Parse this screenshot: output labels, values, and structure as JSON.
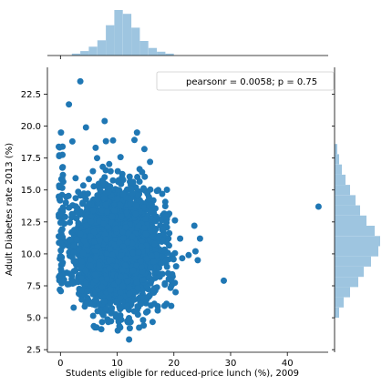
{
  "chart_data": {
    "type": "scatter",
    "subtype": "joint plot with marginal histograms",
    "xlabel": "Students eligible for reduced-price lunch (%), 2009",
    "ylabel": "Adult Diabetes rate 2013 (%)",
    "xlim": [
      -2.3,
      47.2
    ],
    "ylim": [
      2.3,
      24.6
    ],
    "x_ticks": [
      0,
      10,
      20,
      30,
      40
    ],
    "x_tick_labels": [
      "0",
      "10",
      "20",
      "30",
      "40"
    ],
    "y_ticks": [
      2.5,
      5.0,
      7.5,
      10.0,
      12.5,
      15.0,
      17.5,
      20.0,
      22.5
    ],
    "y_tick_labels": [
      "2.5",
      "5.0",
      "7.5",
      "10.0",
      "12.5",
      "15.0",
      "17.5",
      "20.0",
      "22.5"
    ],
    "grid": false,
    "legend": {
      "text": "pearsonr = 0.0058; p = 0.75",
      "placement": "top-right"
    },
    "colors": {
      "points": "#1f77b4",
      "marginal_hist": "#9ec5e0"
    },
    "points_distribution": {
      "approximate_n": 3000,
      "x_center": 10,
      "x_spread": 3.5,
      "y_center": 10.5,
      "y_spread": 2.2
    },
    "outliers": [
      {
        "x": 3.5,
        "y": 23.5
      },
      {
        "x": 45.5,
        "y": 13.7
      },
      {
        "x": 28.8,
        "y": 7.9
      },
      {
        "x": 1.5,
        "y": 21.7
      },
      {
        "x": 0.1,
        "y": 19.5
      },
      {
        "x": 7.8,
        "y": 20.4
      },
      {
        "x": 4.5,
        "y": 19.9
      },
      {
        "x": 13.5,
        "y": 19.5
      },
      {
        "x": 2.1,
        "y": 18.8
      },
      {
        "x": 6.2,
        "y": 18.3
      },
      {
        "x": 15.8,
        "y": 17.2
      },
      {
        "x": 14.8,
        "y": 18.2
      },
      {
        "x": 23.6,
        "y": 12.2
      },
      {
        "x": 24.6,
        "y": 11.2
      },
      {
        "x": 24.2,
        "y": 9.5
      },
      {
        "x": 23.8,
        "y": 10.2
      },
      {
        "x": 22.6,
        "y": 9.9
      },
      {
        "x": 21.1,
        "y": 11.2
      },
      {
        "x": 20.3,
        "y": 7.0
      },
      {
        "x": 19.7,
        "y": 8.4
      },
      {
        "x": 18.7,
        "y": 6.1
      },
      {
        "x": 15.3,
        "y": 6.6
      },
      {
        "x": 12.1,
        "y": 3.3
      },
      {
        "x": 10.1,
        "y": 4.0
      },
      {
        "x": 7.2,
        "y": 4.1
      },
      {
        "x": 0.2,
        "y": 7.7
      },
      {
        "x": -0.1,
        "y": 8.3
      },
      {
        "x": 0.4,
        "y": 13.3
      },
      {
        "x": -0.2,
        "y": 13.1
      },
      {
        "x": 0.3,
        "y": 15.9
      }
    ],
    "marginal_x_hist": {
      "bin_edges": [
        2,
        3.5,
        5,
        6.5,
        8,
        9.5,
        11,
        12.5,
        14,
        15.5,
        17,
        18.5,
        20
      ],
      "counts": [
        3,
        7,
        14,
        24,
        48,
        72,
        66,
        44,
        23,
        12,
        6,
        3
      ]
    },
    "marginal_y_hist": {
      "bin_edges": [
        5,
        5.8,
        6.6,
        7.4,
        8.2,
        9.0,
        9.8,
        10.6,
        11.4,
        12.2,
        13.0,
        13.8,
        14.6,
        15.4,
        16.2,
        17.0,
        17.8,
        18.6
      ],
      "counts": [
        10,
        20,
        34,
        52,
        64,
        80,
        96,
        100,
        88,
        70,
        56,
        46,
        34,
        24,
        16,
        10,
        6
      ]
    }
  }
}
